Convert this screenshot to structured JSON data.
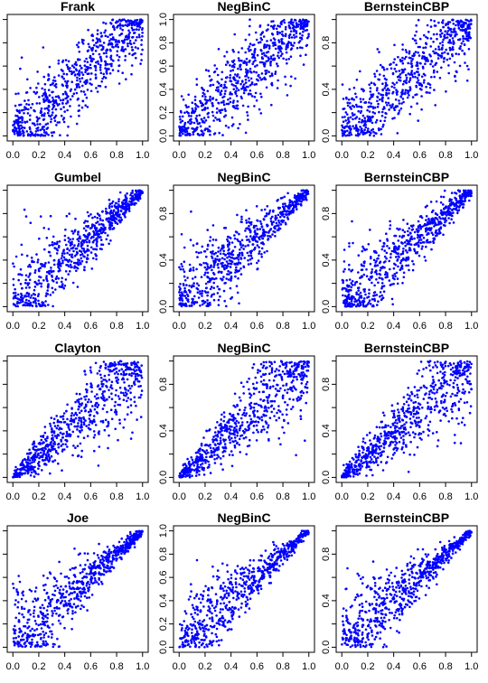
{
  "point_color": "#0000ff",
  "chart_data": [
    {
      "type": "scatter",
      "title": "Frank",
      "family": "frank",
      "ylim": [
        0,
        1
      ],
      "xlim": [
        0,
        1
      ],
      "xticks": [
        "0.0",
        "0.2",
        "0.4",
        "0.6",
        "0.8",
        "1.0"
      ],
      "yticks": [],
      "n": 700,
      "seed": 11
    },
    {
      "type": "scatter",
      "title": "NegBinC",
      "family": "frank",
      "ylim": [
        0,
        1
      ],
      "xlim": [
        0,
        1
      ],
      "xticks": [
        "0.0",
        "0.2",
        "0.4",
        "0.6",
        "0.8",
        "1.0"
      ],
      "yticks": [
        "0.0",
        "0.2",
        "0.4",
        "0.6",
        "0.8",
        "1.0"
      ],
      "n": 700,
      "seed": 12
    },
    {
      "type": "scatter",
      "title": "BernsteinCBP",
      "family": "frank",
      "ylim": [
        0,
        1
      ],
      "xlim": [
        0,
        1
      ],
      "xticks": [
        "0.0",
        "0.2",
        "0.4",
        "0.6",
        "0.8",
        "1.0"
      ],
      "yticks": [
        "0.0",
        "0.4",
        "0.8"
      ],
      "n": 700,
      "seed": 13
    },
    {
      "type": "scatter",
      "title": "Gumbel",
      "family": "gumbel",
      "ylim": [
        0,
        1
      ],
      "xlim": [
        0,
        1
      ],
      "xticks": [
        "0.0",
        "0.2",
        "0.4",
        "0.6",
        "0.8",
        "1.0"
      ],
      "yticks": [],
      "n": 700,
      "seed": 21
    },
    {
      "type": "scatter",
      "title": "NegBinC",
      "family": "gumbel",
      "ylim": [
        0,
        1
      ],
      "xlim": [
        0,
        1
      ],
      "xticks": [
        "0.0",
        "0.2",
        "0.4",
        "0.6",
        "0.8",
        "1.0"
      ],
      "yticks": [
        "0.0",
        "0.4",
        "0.8"
      ],
      "n": 700,
      "seed": 22
    },
    {
      "type": "scatter",
      "title": "BernsteinCBP",
      "family": "gumbel",
      "ylim": [
        0,
        1
      ],
      "xlim": [
        0,
        1
      ],
      "xticks": [
        "0.0",
        "0.2",
        "0.4",
        "0.6",
        "0.8",
        "1.0"
      ],
      "yticks": [
        "0.0",
        "0.4",
        "0.8"
      ],
      "n": 700,
      "seed": 23
    },
    {
      "type": "scatter",
      "title": "Clayton",
      "family": "clayton",
      "ylim": [
        0,
        1
      ],
      "xlim": [
        0,
        1
      ],
      "xticks": [
        "0.0",
        "0.2",
        "0.4",
        "0.6",
        "0.8",
        "1.0"
      ],
      "yticks": [],
      "n": 700,
      "seed": 31
    },
    {
      "type": "scatter",
      "title": "NegBinC",
      "family": "clayton",
      "ylim": [
        0,
        1
      ],
      "xlim": [
        0,
        1
      ],
      "xticks": [
        "0.0",
        "0.2",
        "0.4",
        "0.6",
        "0.8",
        "1.0"
      ],
      "yticks": [
        "0.0",
        "0.4",
        "0.8"
      ],
      "n": 700,
      "seed": 32
    },
    {
      "type": "scatter",
      "title": "BernsteinCBP",
      "family": "clayton",
      "ylim": [
        0,
        1
      ],
      "xlim": [
        0,
        1
      ],
      "xticks": [
        "0.0",
        "0.2",
        "0.4",
        "0.6",
        "0.8",
        "1.0"
      ],
      "yticks": [
        "0.0",
        "0.4",
        "0.8"
      ],
      "n": 700,
      "seed": 33
    },
    {
      "type": "scatter",
      "title": "Joe",
      "family": "joe",
      "ylim": [
        0,
        1
      ],
      "xlim": [
        0,
        1
      ],
      "xticks": [
        "0.0",
        "0.2",
        "0.4",
        "0.6",
        "0.8",
        "1.0"
      ],
      "yticks": [],
      "n": 700,
      "seed": 41
    },
    {
      "type": "scatter",
      "title": "NegBinC",
      "family": "joe",
      "ylim": [
        0,
        1
      ],
      "xlim": [
        0,
        1
      ],
      "xticks": [
        "0.0",
        "0.2",
        "0.4",
        "0.6",
        "0.8",
        "1.0"
      ],
      "yticks": [
        "0.0",
        "0.2",
        "0.4",
        "0.6",
        "0.8",
        "1.0"
      ],
      "n": 700,
      "seed": 42
    },
    {
      "type": "scatter",
      "title": "BernsteinCBP",
      "family": "joe",
      "ylim": [
        0,
        1
      ],
      "xlim": [
        0,
        1
      ],
      "xticks": [
        "0.0",
        "0.2",
        "0.4",
        "0.6",
        "0.8",
        "1.0"
      ],
      "yticks": [
        "0.0",
        "0.4",
        "0.8"
      ],
      "n": 700,
      "seed": 43
    }
  ]
}
